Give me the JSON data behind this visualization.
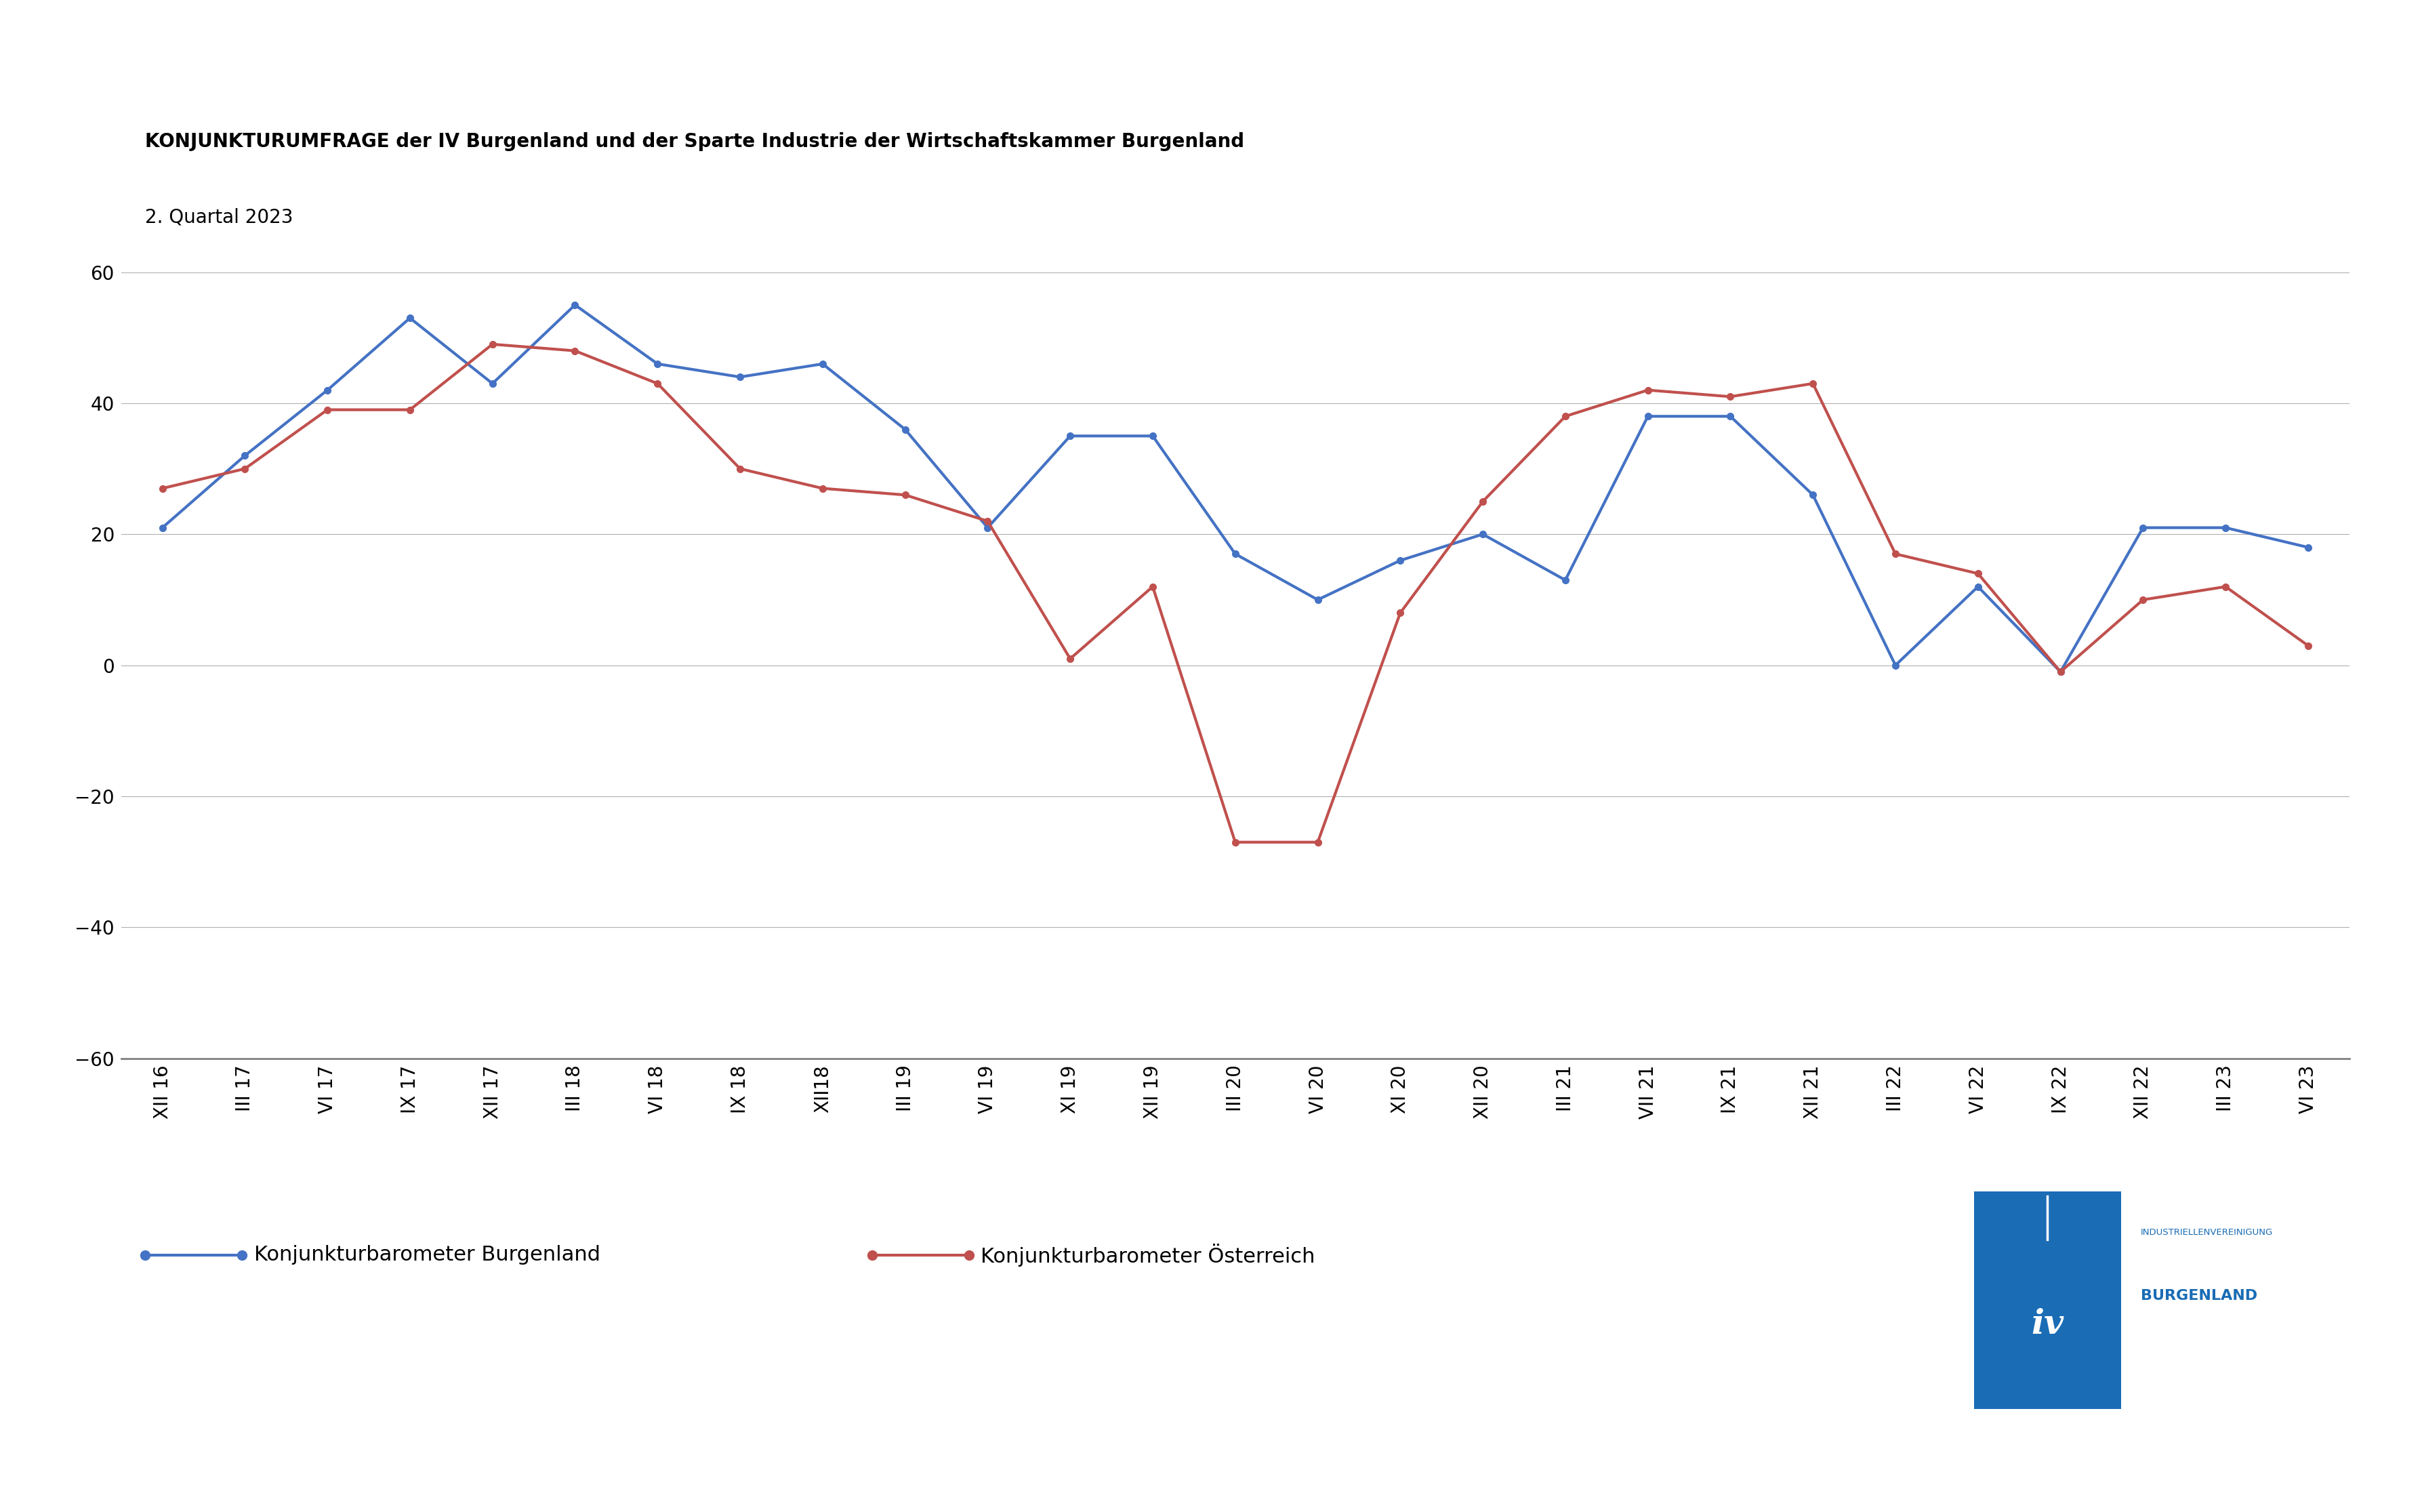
{
  "title_line1": "KONJUNKTURUMFRAGE der IV Burgenland und der Sparte Industrie der Wirtschaftskammer Burgenland",
  "title_line2": "2. Quartal 2023",
  "x_labels": [
    "XII 16",
    "III 17",
    "VI 17",
    "IX 17",
    "XII 17",
    "III 18",
    "VI 18",
    "IX 18",
    "XII18",
    "III 19",
    "VI 19",
    "XI 19",
    "XII 19",
    "III 20",
    "VI 20",
    "XI 20",
    "XII 20",
    "III 21",
    "VII 21",
    "IX 21",
    "XII 21",
    "III 22",
    "VI 22",
    "IX 22",
    "XII 22",
    "III 23",
    "VI 23"
  ],
  "burgenland": [
    21,
    32,
    42,
    53,
    43,
    55,
    46,
    44,
    46,
    36,
    21,
    35,
    35,
    17,
    10,
    16,
    20,
    13,
    38,
    38,
    26,
    0,
    12,
    -1,
    21,
    21,
    18
  ],
  "oesterreich": [
    27,
    30,
    39,
    39,
    49,
    48,
    43,
    30,
    27,
    26,
    22,
    1,
    12,
    -27,
    -27,
    8,
    25,
    38,
    42,
    41,
    43,
    17,
    14,
    -1,
    10,
    12,
    3
  ],
  "color_burgenland": "#4472C4",
  "color_oesterreich": "#C0504D",
  "ylim": [
    -60,
    60
  ],
  "yticks": [
    -60,
    -40,
    -20,
    0,
    20,
    40,
    60
  ],
  "legend_label_burgenland": "Konjunkturbarometer Burgenland",
  "legend_label_oesterreich": "Konjunkturbarometer Österreich",
  "iv_text1": "INDUSTRIELLENVEREINIGUNG",
  "iv_text2": "BURGENLAND",
  "iv_color": "#1a6cb5",
  "background_color": "#ffffff",
  "grid_color": "#b0b0b0",
  "line_width": 3.0,
  "marker_size": 7,
  "title_fontsize": 20,
  "subtitle_fontsize": 20,
  "tick_fontsize": 20,
  "legend_fontsize": 22
}
